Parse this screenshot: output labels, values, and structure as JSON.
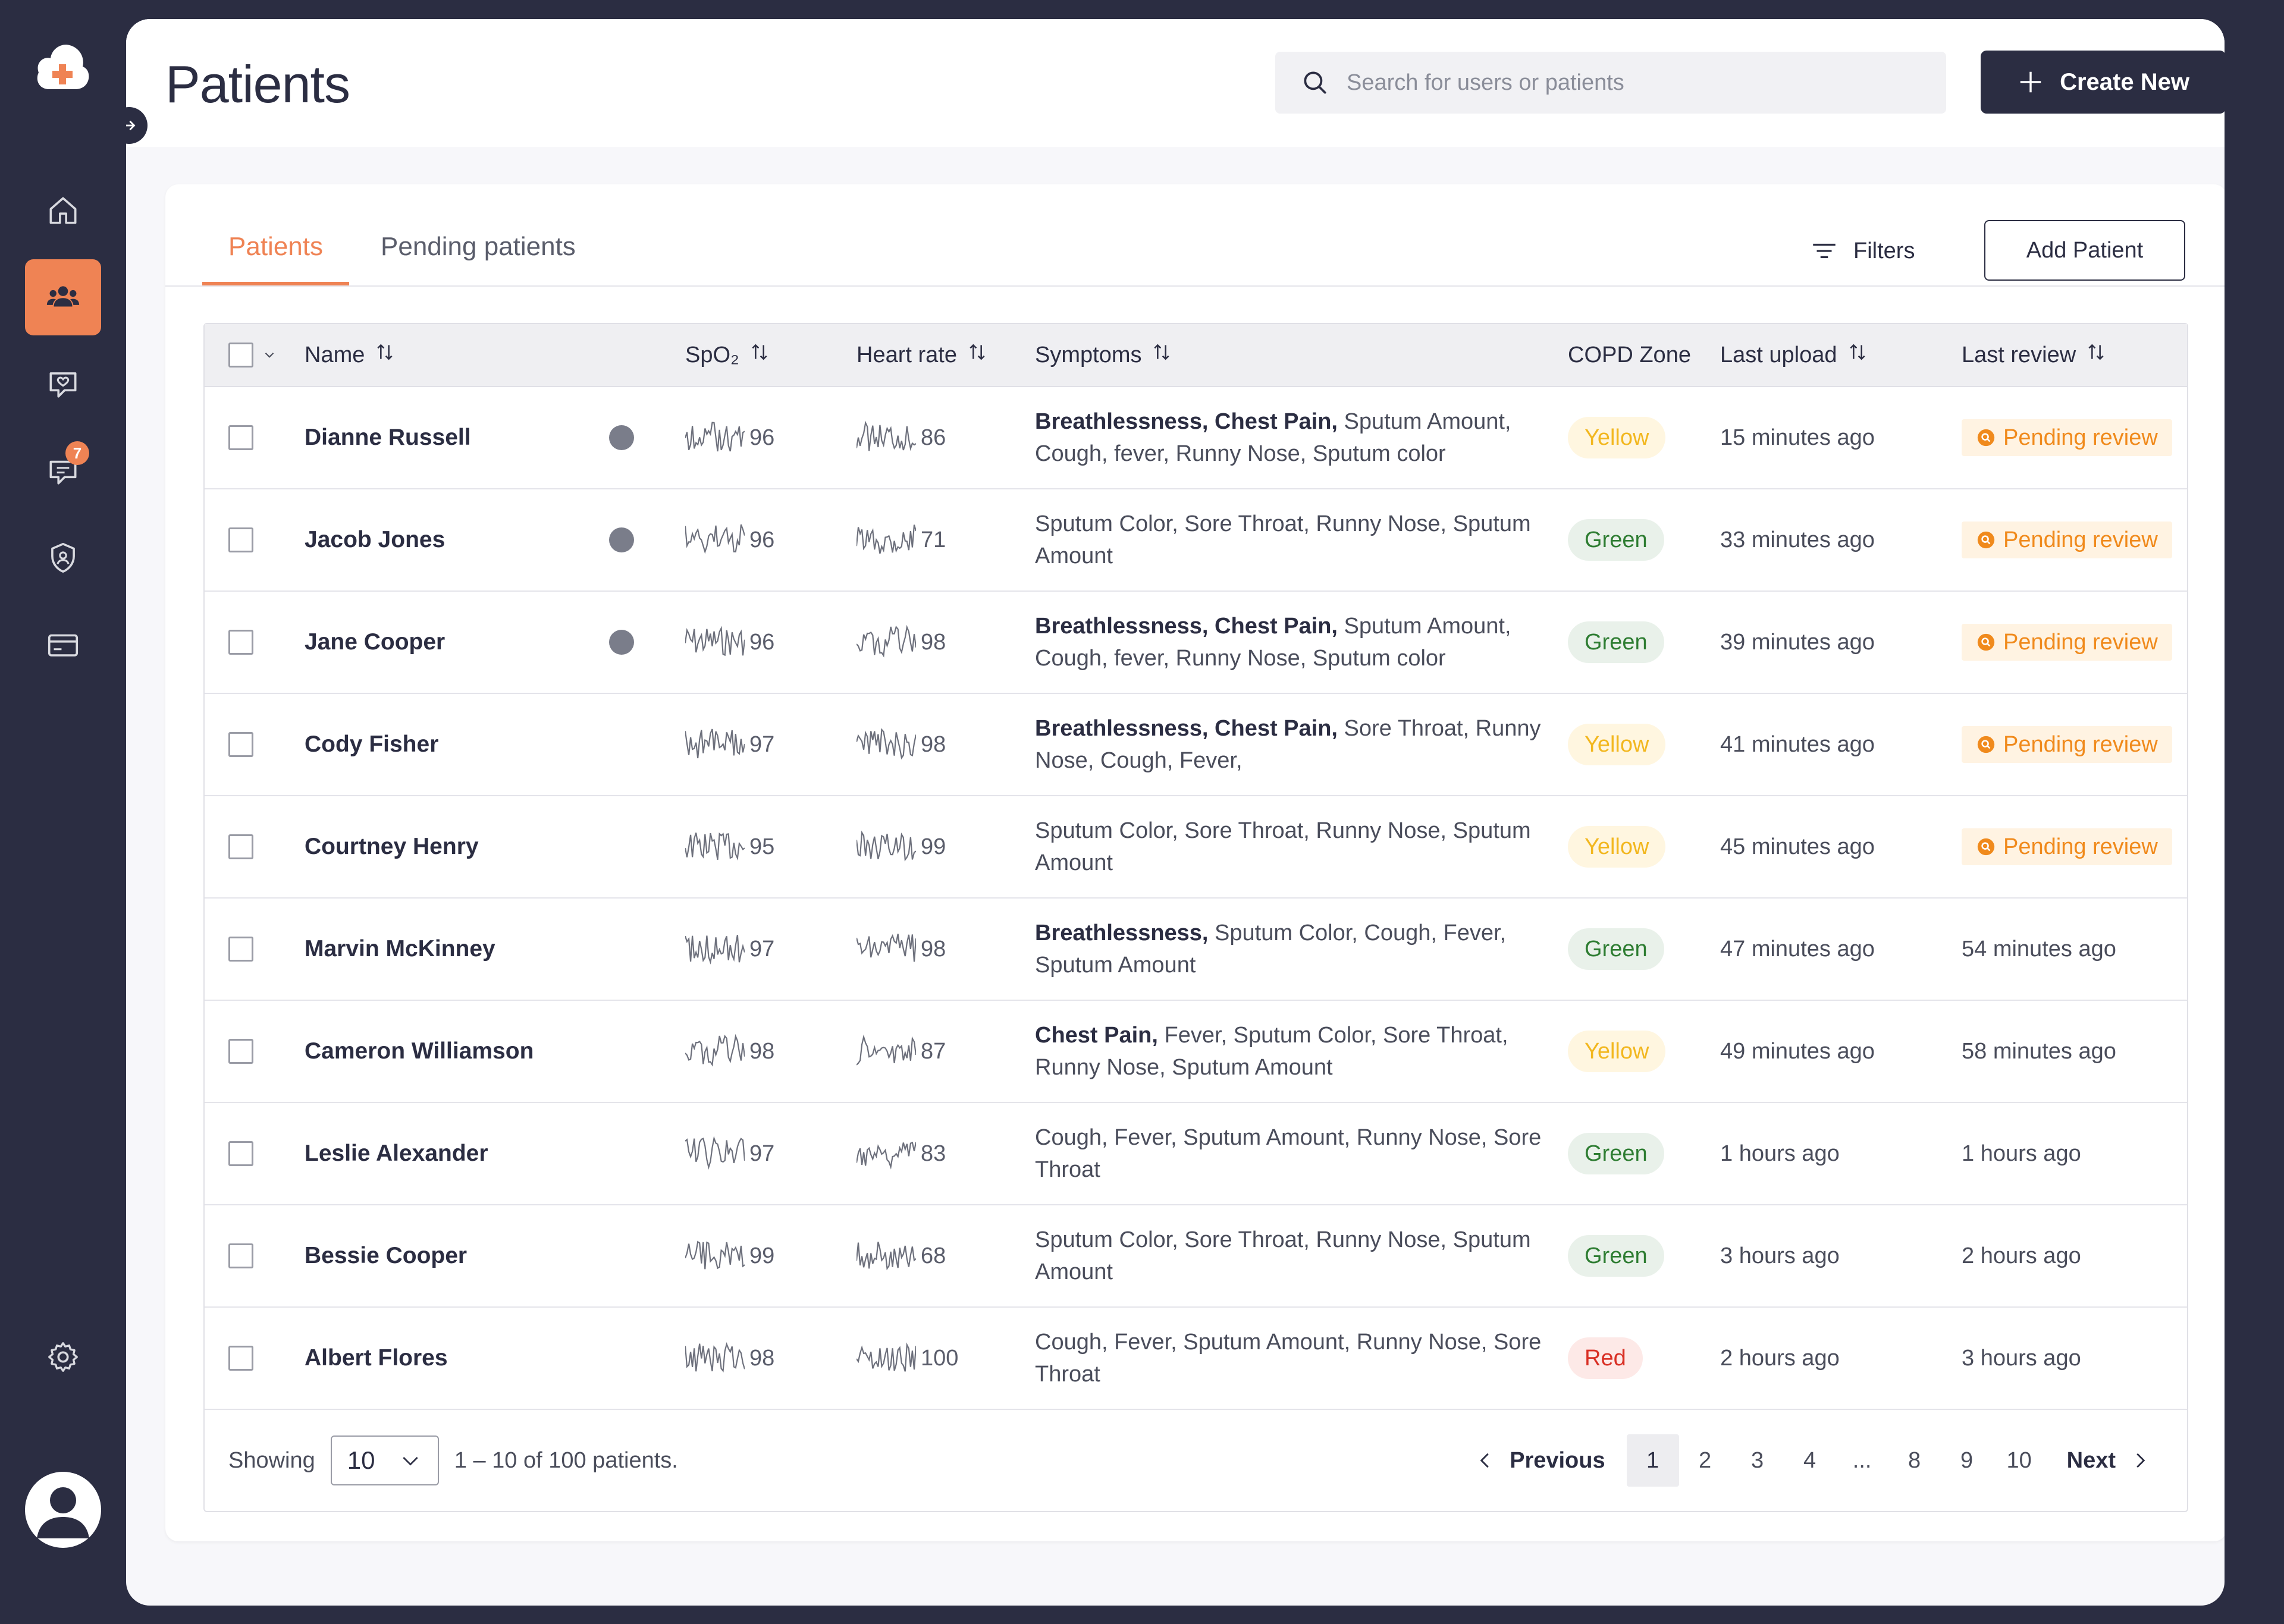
{
  "app": {
    "colors": {
      "sidebar": "#2b2d42",
      "accent": "#ef8354",
      "primary": "#2b2d42"
    },
    "messages_badge": "7"
  },
  "header": {
    "title": "Patients",
    "search_placeholder": "Search for users or patients",
    "create_label": "Create New"
  },
  "tabs": [
    {
      "label": "Patients",
      "active": true
    },
    {
      "label": "Pending patients",
      "active": false
    }
  ],
  "toolbar": {
    "filters_label": "Filters",
    "add_patient_label": "Add Patient"
  },
  "columns": {
    "name": "Name",
    "spo2": "SpO₂",
    "heart_rate": "Heart rate",
    "symptoms": "Symptoms",
    "copd_zone": "COPD Zone",
    "last_upload": "Last upload",
    "last_review": "Last review"
  },
  "rows": [
    {
      "name": "Dianne Russell",
      "dot": true,
      "spo2": "96",
      "hr": "86",
      "symptoms_bold": "Breathlessness, Chest Pain,",
      "symptoms_rest": " Sputum Amount, Cough, fever, Runny Nose, Sputum color",
      "zone": "Yellow",
      "upload": "15 minutes ago",
      "review": "Pending review",
      "pending": true
    },
    {
      "name": "Jacob Jones",
      "dot": true,
      "spo2": "96",
      "hr": "71",
      "symptoms_bold": "",
      "symptoms_rest": "Sputum Color,  Sore Throat, Runny Nose, Sputum Amount",
      "zone": "Green",
      "upload": "33 minutes ago",
      "review": "Pending review",
      "pending": true
    },
    {
      "name": "Jane Cooper",
      "dot": true,
      "spo2": "96",
      "hr": "98",
      "symptoms_bold": "Breathlessness, Chest Pain,",
      "symptoms_rest": " Sputum Amount, Cough, fever, Runny Nose, Sputum color",
      "zone": "Green",
      "upload": "39  minutes ago",
      "review": "Pending review",
      "pending": true
    },
    {
      "name": "Cody Fisher",
      "dot": false,
      "spo2": "97",
      "hr": "98",
      "symptoms_bold": "Breathlessness, Chest Pain,",
      "symptoms_rest": " Sore Throat, Runny Nose, Cough, Fever,",
      "zone": "Yellow",
      "upload": "41 minutes ago",
      "review": "Pending review",
      "pending": true
    },
    {
      "name": "Courtney Henry",
      "dot": false,
      "spo2": "95",
      "hr": "99",
      "symptoms_bold": "",
      "symptoms_rest": "Sputum Color,  Sore Throat, Runny Nose, Sputum Amount",
      "zone": "Yellow",
      "upload": "45 minutes ago",
      "review": "Pending review",
      "pending": true
    },
    {
      "name": "Marvin McKinney",
      "dot": false,
      "spo2": "97",
      "hr": "98",
      "symptoms_bold": "Breathlessness,",
      "symptoms_rest": " Sputum Color, Cough, Fever, Sputum Amount",
      "zone": "Green",
      "upload": "47 minutes ago",
      "review": "54 minutes ago",
      "pending": false
    },
    {
      "name": "Cameron Williamson",
      "dot": false,
      "spo2": "98",
      "hr": "87",
      "symptoms_bold": "Chest Pain,",
      "symptoms_rest": " Fever, Sputum Color, Sore Throat, Runny Nose, Sputum Amount",
      "zone": "Yellow",
      "upload": "49 minutes ago",
      "review": "58 minutes ago",
      "pending": false
    },
    {
      "name": "Leslie Alexander",
      "dot": false,
      "spo2": "97",
      "hr": "83",
      "symptoms_bold": "",
      "symptoms_rest": "Cough, Fever, Sputum Amount, Runny Nose, Sore Throat",
      "zone": "Green",
      "upload": "1 hours ago",
      "review": "1 hours ago",
      "pending": false
    },
    {
      "name": "Bessie Cooper",
      "dot": false,
      "spo2": "99",
      "hr": "68",
      "symptoms_bold": "",
      "symptoms_rest": "Sputum Color,  Sore Throat, Runny Nose, Sputum Amount",
      "zone": "Green",
      "upload": "3 hours ago",
      "review": "2 hours ago",
      "pending": false
    },
    {
      "name": "Albert Flores",
      "dot": false,
      "spo2": "98",
      "hr": "100",
      "symptoms_bold": "",
      "symptoms_rest": "Cough, Fever, Sputum Amount, Runny Nose, Sore Throat",
      "zone": "Red",
      "upload": "2 hours ago",
      "review": "3 hours ago",
      "pending": false
    }
  ],
  "footer": {
    "showing_label": "Showing",
    "page_size": "10",
    "range_text": "1 – 10 of 100 patients.",
    "previous_label": "Previous",
    "next_label": "Next",
    "pages": [
      "1",
      "2",
      "3",
      "4",
      "...",
      "8",
      "9",
      "10"
    ],
    "current_page": "1"
  }
}
